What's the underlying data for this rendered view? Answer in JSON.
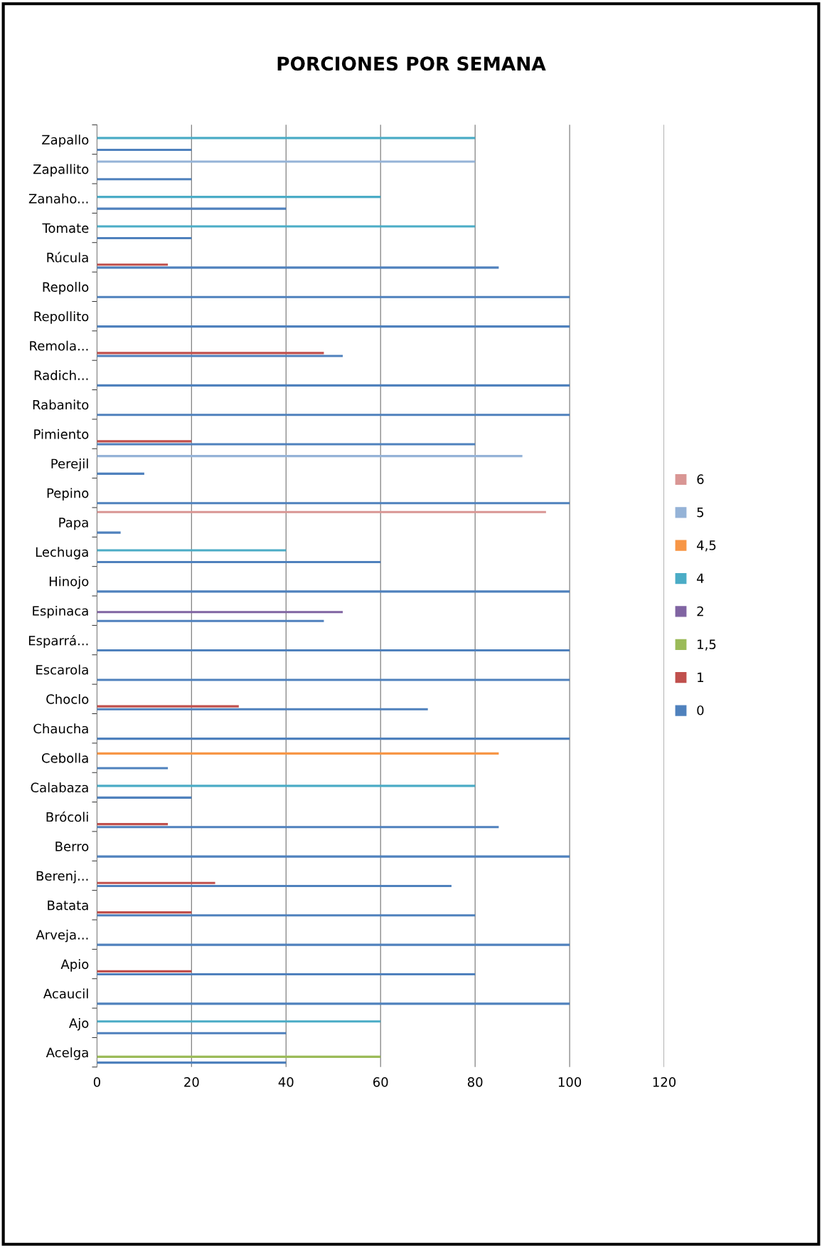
{
  "chart_data": {
    "type": "bar",
    "orientation": "horizontal",
    "title": "PORCIONES POR SEMANA",
    "categories": [
      "Zapallo",
      "Zapallito",
      "Zanaho...",
      "Tomate",
      "Rúcula",
      "Repollo",
      "Repollito",
      "Remola...",
      "Radich...",
      "Rabanito",
      "Pimiento",
      "Perejil",
      "Pepino",
      "Papa",
      "Lechuga",
      "Hinojo",
      "Espinaca",
      "Esparrá...",
      "Escarola",
      "Choclo",
      "Chaucha",
      "Cebolla",
      "Calabaza",
      "Brócoli",
      "Berro",
      "Berenj...",
      "Batata",
      "Arveja...",
      "Apio",
      "Acaucil",
      "Ajo",
      "Acelga"
    ],
    "series": [
      {
        "name": "0",
        "color": "#4f81bd",
        "values": [
          20,
          20,
          40,
          20,
          85,
          100,
          100,
          52,
          100,
          100,
          80,
          10,
          100,
          5,
          60,
          100,
          48,
          100,
          100,
          70,
          100,
          15,
          20,
          85,
          100,
          75,
          80,
          100,
          80,
          100,
          40,
          40
        ]
      },
      {
        "name": "1",
        "color": "#c0504d",
        "values": [
          null,
          null,
          null,
          null,
          15,
          null,
          null,
          48,
          null,
          null,
          20,
          null,
          null,
          null,
          null,
          null,
          null,
          null,
          null,
          30,
          null,
          null,
          null,
          15,
          null,
          25,
          20,
          null,
          20,
          null,
          null,
          null
        ]
      },
      {
        "name": "1,5",
        "color": "#9bbb59",
        "values": [
          null,
          null,
          null,
          null,
          null,
          null,
          null,
          null,
          null,
          null,
          null,
          null,
          null,
          null,
          null,
          null,
          null,
          null,
          null,
          null,
          null,
          null,
          null,
          null,
          null,
          null,
          null,
          null,
          null,
          null,
          null,
          60
        ]
      },
      {
        "name": "2",
        "color": "#8064a2",
        "values": [
          null,
          null,
          null,
          null,
          null,
          null,
          null,
          null,
          null,
          null,
          null,
          null,
          null,
          null,
          null,
          null,
          52,
          null,
          null,
          null,
          null,
          null,
          null,
          null,
          null,
          null,
          null,
          null,
          null,
          null,
          null,
          null
        ]
      },
      {
        "name": "4",
        "color": "#4bacc6",
        "values": [
          80,
          null,
          60,
          80,
          null,
          null,
          null,
          null,
          null,
          null,
          null,
          null,
          null,
          null,
          40,
          null,
          null,
          null,
          null,
          null,
          null,
          null,
          80,
          null,
          null,
          null,
          null,
          null,
          null,
          null,
          60,
          null
        ]
      },
      {
        "name": "4,5",
        "color": "#f79646",
        "values": [
          null,
          null,
          null,
          null,
          null,
          null,
          null,
          null,
          null,
          null,
          null,
          null,
          null,
          null,
          null,
          null,
          null,
          null,
          null,
          null,
          null,
          85,
          null,
          null,
          null,
          null,
          null,
          null,
          null,
          null,
          null,
          null
        ]
      },
      {
        "name": "5",
        "color": "#95b3d7",
        "values": [
          null,
          80,
          null,
          null,
          null,
          null,
          null,
          null,
          null,
          null,
          null,
          90,
          null,
          null,
          null,
          null,
          null,
          null,
          null,
          null,
          null,
          null,
          null,
          null,
          null,
          null,
          null,
          null,
          null,
          null,
          null,
          null
        ]
      },
      {
        "name": "6",
        "color": "#d99694",
        "values": [
          null,
          null,
          null,
          null,
          null,
          null,
          null,
          null,
          null,
          null,
          null,
          null,
          null,
          95,
          null,
          null,
          null,
          null,
          null,
          null,
          null,
          null,
          null,
          null,
          null,
          null,
          null,
          null,
          null,
          null,
          null,
          null
        ]
      }
    ],
    "xlim": [
      0,
      120
    ],
    "xticks": [
      0,
      20,
      40,
      60,
      80,
      100,
      120
    ],
    "grid": "x",
    "legend": "right"
  }
}
